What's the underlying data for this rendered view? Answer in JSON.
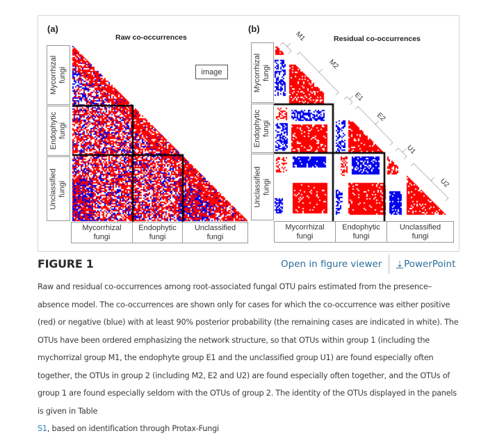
{
  "figure": {
    "panel_a": {
      "letter": "(a)",
      "title": "Raw co-occurrences",
      "row_labels": [
        [
          "Mycorrhizal",
          "fungi"
        ],
        [
          "Endophytic",
          "fungi"
        ],
        [
          "Unclassified",
          "fungi"
        ]
      ],
      "col_labels": [
        [
          "Mycorrhizal",
          "fungi"
        ],
        [
          "Endophytic",
          "fungi"
        ],
        [
          "Unclassified",
          "fungi"
        ]
      ]
    },
    "panel_b": {
      "letter": "(b)",
      "title": "Residual co-occurrences",
      "row_labels": [
        [
          "Mycorrhizal",
          "fungi"
        ],
        [
          "Endophytic",
          "fungi"
        ],
        [
          "Unclassified",
          "fungi"
        ]
      ],
      "col_labels": [
        [
          "Mycorrhizal",
          "fungi"
        ],
        [
          "Endophytic",
          "fungi"
        ],
        [
          "Unclassified",
          "fungi"
        ]
      ],
      "groups": [
        "M1",
        "M2",
        "E1",
        "E2",
        "U1",
        "U2"
      ]
    },
    "tooltip": "image",
    "colors": {
      "positive": "#ff0000",
      "negative": "#0000ee"
    }
  },
  "header": {
    "title": "FIGURE 1",
    "open_viewer": "Open in figure viewer",
    "powerpoint": "PowerPoint",
    "download_icon": "download-icon"
  },
  "caption": {
    "before_link": "Raw and residual co-occurrences among root-associated fungal OTU pairs estimated from the presence–absence model. The co-occurrences are shown only for cases for which the co-occurrence was either positive (red) or negative (blue) with at least 90% posterior probability (the remaining cases are indicated in white). The OTUs have been ordered emphasizing the network structure, so that OTUs within group 1 (including the mychorrizal group M1, the endophyte group E1 and the unclassified group U1) are found especially often together, the OTUs in group 2 (including M2, E2 and U2) are found especially often together, and the OTUs of group 1 are found especially seldom with the OTUs of group 2. The identity of the OTUs displayed in the panels is given in Table ",
    "link": "S1",
    "after_link": ", based on identification through Protax-Fungi"
  }
}
